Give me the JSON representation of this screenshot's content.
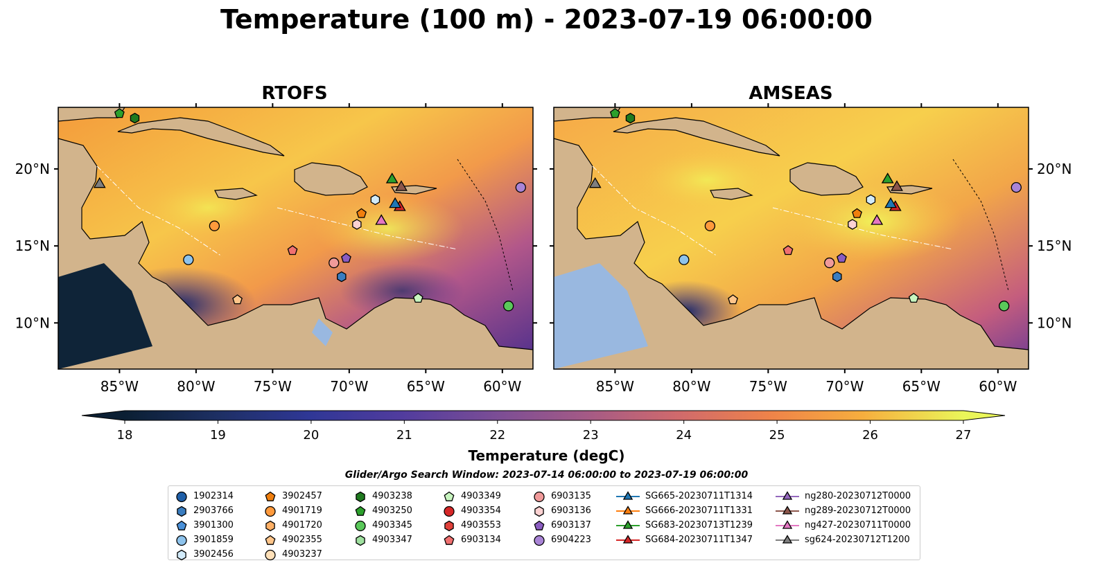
{
  "title": "Temperature (100 m) - 2023-07-19 06:00:00",
  "panels": [
    {
      "title": "RTOFS"
    },
    {
      "title": "AMSEAS"
    }
  ],
  "map": {
    "lon_range": [
      -89,
      -58
    ],
    "lat_range": [
      7,
      24
    ],
    "lon_ticks": [
      "85°W",
      "80°W",
      "75°W",
      "70°W",
      "65°W",
      "60°W"
    ],
    "lat_ticks": [
      "20°N",
      "15°N",
      "10°N"
    ],
    "land_color": "#d2b48c",
    "ocean_color": "#99b8e0"
  },
  "colorbar": {
    "label": "Temperature (degC)",
    "min": 18,
    "max": 27,
    "ticks": [
      "18",
      "19",
      "20",
      "21",
      "22",
      "23",
      "24",
      "25",
      "26",
      "27"
    ],
    "extend": "both",
    "colormap": "thermal"
  },
  "legend": {
    "title": "Glider/Argo Search Window: 2023-07-14 06:00:00 to 2023-07-19 06:00:00",
    "columns": [
      [
        {
          "label": "1902314",
          "marker": "circle",
          "color": "#1f5fa8"
        },
        {
          "label": "2903766",
          "marker": "hexagon",
          "color": "#3a7dc0"
        },
        {
          "label": "3901300",
          "marker": "pentagon",
          "color": "#4a90d8"
        },
        {
          "label": "3901859",
          "marker": "circle",
          "color": "#8ec3ec"
        },
        {
          "label": "3902456",
          "marker": "hexagon",
          "color": "#d2ebfa"
        }
      ],
      [
        {
          "label": "3902457",
          "marker": "pentagon",
          "color": "#f07f0e"
        },
        {
          "label": "4901719",
          "marker": "circle",
          "color": "#ff9a3c"
        },
        {
          "label": "4901720",
          "marker": "hexagon",
          "color": "#ffb066"
        },
        {
          "label": "4902355",
          "marker": "pentagon",
          "color": "#ffc58a"
        },
        {
          "label": "4903237",
          "marker": "circle",
          "color": "#ffe0b8"
        }
      ],
      [
        {
          "label": "4903238",
          "marker": "hexagon",
          "color": "#1f7a1f"
        },
        {
          "label": "4903250",
          "marker": "pentagon",
          "color": "#2ca02c"
        },
        {
          "label": "4903345",
          "marker": "circle",
          "color": "#5ac85a"
        },
        {
          "label": "4903347",
          "marker": "hexagon",
          "color": "#9fe09f"
        }
      ],
      [
        {
          "label": "4903349",
          "marker": "pentagon",
          "color": "#c8f5c0"
        },
        {
          "label": "4903354",
          "marker": "circle",
          "color": "#d62728"
        },
        {
          "label": "4903553",
          "marker": "hexagon",
          "color": "#e0403a"
        },
        {
          "label": "6903134",
          "marker": "pentagon",
          "color": "#f07070"
        }
      ],
      [
        {
          "label": "6903135",
          "marker": "circle",
          "color": "#f09a9a"
        },
        {
          "label": "6903136",
          "marker": "hexagon",
          "color": "#fcd2d2"
        },
        {
          "label": "6903137",
          "marker": "pentagon",
          "color": "#8a5cc0"
        },
        {
          "label": "6904223",
          "marker": "circle",
          "color": "#a984d6"
        }
      ],
      [
        {
          "label": "SG665-20230711T1314",
          "marker": "triangle",
          "color": "#1f77b4"
        },
        {
          "label": "SG666-20230711T1331",
          "marker": "triangle",
          "color": "#ff7f0e"
        },
        {
          "label": "SG683-20230713T1239",
          "marker": "triangle",
          "color": "#2ca02c"
        },
        {
          "label": "SG684-20230711T1347",
          "marker": "triangle",
          "color": "#d62728"
        }
      ],
      [
        {
          "label": "ng280-20230712T0000",
          "marker": "triangle",
          "color": "#9467bd"
        },
        {
          "label": "ng289-20230712T0000",
          "marker": "triangle",
          "color": "#8c564b"
        },
        {
          "label": "ng427-20230711T0000",
          "marker": "triangle",
          "color": "#e377c2"
        },
        {
          "label": "sg624-20230712T1200",
          "marker": "triangle",
          "color": "#7f7f7f"
        }
      ]
    ]
  },
  "points": [
    {
      "id": "3901859",
      "lon": -80.5,
      "lat": 14.1
    },
    {
      "id": "4901719",
      "lon": -78.8,
      "lat": 16.3
    },
    {
      "id": "4902355",
      "lon": -77.3,
      "lat": 11.5
    },
    {
      "id": "6903134",
      "lon": -73.7,
      "lat": 14.7
    },
    {
      "id": "6903135",
      "lon": -71.0,
      "lat": 13.9
    },
    {
      "id": "6903137",
      "lon": -70.2,
      "lat": 14.2
    },
    {
      "id": "2903766",
      "lon": -70.5,
      "lat": 13.0
    },
    {
      "id": "6903136",
      "lon": -69.5,
      "lat": 16.4
    },
    {
      "id": "3902457",
      "lon": -69.2,
      "lat": 17.1
    },
    {
      "id": "3902456",
      "lon": -68.3,
      "lat": 18.0
    },
    {
      "id": "4903349",
      "lon": -65.5,
      "lat": 11.6
    },
    {
      "id": "4903345",
      "lon": -59.6,
      "lat": 11.1
    },
    {
      "id": "6904223",
      "lon": -58.8,
      "lat": 18.8
    },
    {
      "id": "4903238",
      "lon": -84.0,
      "lat": 23.3
    },
    {
      "id": "4903250",
      "lon": -85.0,
      "lat": 23.6
    },
    {
      "id": "ng427-20230711T0000",
      "lon": -67.9,
      "lat": 16.6
    },
    {
      "id": "SG683-20230713T1239",
      "lon": -67.2,
      "lat": 19.3
    },
    {
      "id": "ng289-20230712T0000",
      "lon": -66.6,
      "lat": 18.8
    },
    {
      "id": "SG684-20230711T1347",
      "lon": -66.7,
      "lat": 17.5
    },
    {
      "id": "SG665-20230711T1314",
      "lon": -67.0,
      "lat": 17.7
    },
    {
      "id": "sg624-20230712T1200",
      "lon": -86.3,
      "lat": 19.0
    }
  ]
}
